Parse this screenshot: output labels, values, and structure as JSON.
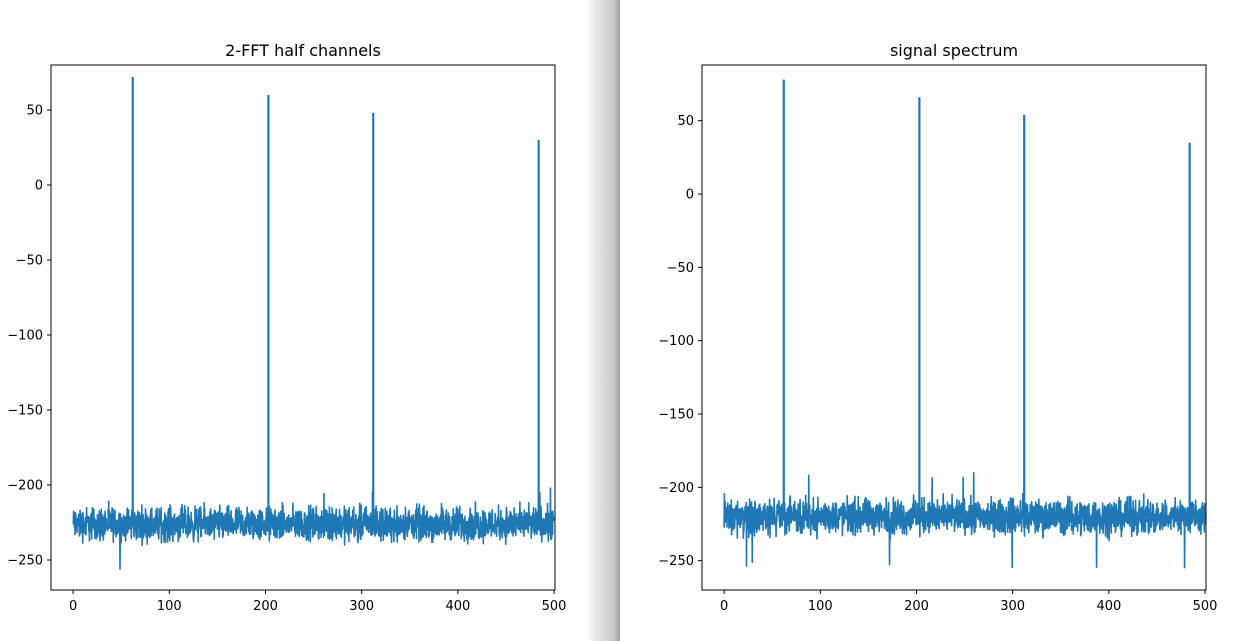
{
  "chart_data": [
    {
      "type": "line",
      "title": "2-FFT half channels",
      "xlabel": "",
      "ylabel": "",
      "xlim": [
        -23,
        501
      ],
      "ylim": [
        -270,
        80
      ],
      "xticks": [
        0,
        100,
        200,
        300,
        400,
        500
      ],
      "yticks": [
        50,
        0,
        -50,
        -100,
        -150,
        -200,
        -250
      ],
      "grid": false,
      "color": "#1f77b4",
      "noise_floor": {
        "x_start": 0,
        "x_end": 500,
        "mean": -226,
        "typical_min": -245,
        "typical_max": -212,
        "min": -256,
        "max": -202
      },
      "peaks": [
        {
          "x": 62,
          "y": 72
        },
        {
          "x": 203,
          "y": 60
        },
        {
          "x": 312,
          "y": 48
        },
        {
          "x": 484,
          "y": 30
        }
      ]
    },
    {
      "type": "line",
      "title": "signal spectrum",
      "xlabel": "",
      "ylabel": "",
      "xlim": [
        -23,
        501
      ],
      "ylim": [
        -270,
        88
      ],
      "xticks": [
        0,
        100,
        200,
        300,
        400,
        500
      ],
      "yticks": [
        50,
        0,
        -50,
        -100,
        -150,
        -200,
        -250
      ],
      "grid": false,
      "color": "#1f77b4",
      "noise_floor": {
        "x_start": 0,
        "x_end": 500,
        "mean": -220,
        "typical_min": -240,
        "typical_max": -205,
        "min": -255,
        "max": -190
      },
      "peaks": [
        {
          "x": 62,
          "y": 78
        },
        {
          "x": 203,
          "y": 66
        },
        {
          "x": 312,
          "y": 54
        },
        {
          "x": 484,
          "y": 35
        }
      ]
    }
  ]
}
